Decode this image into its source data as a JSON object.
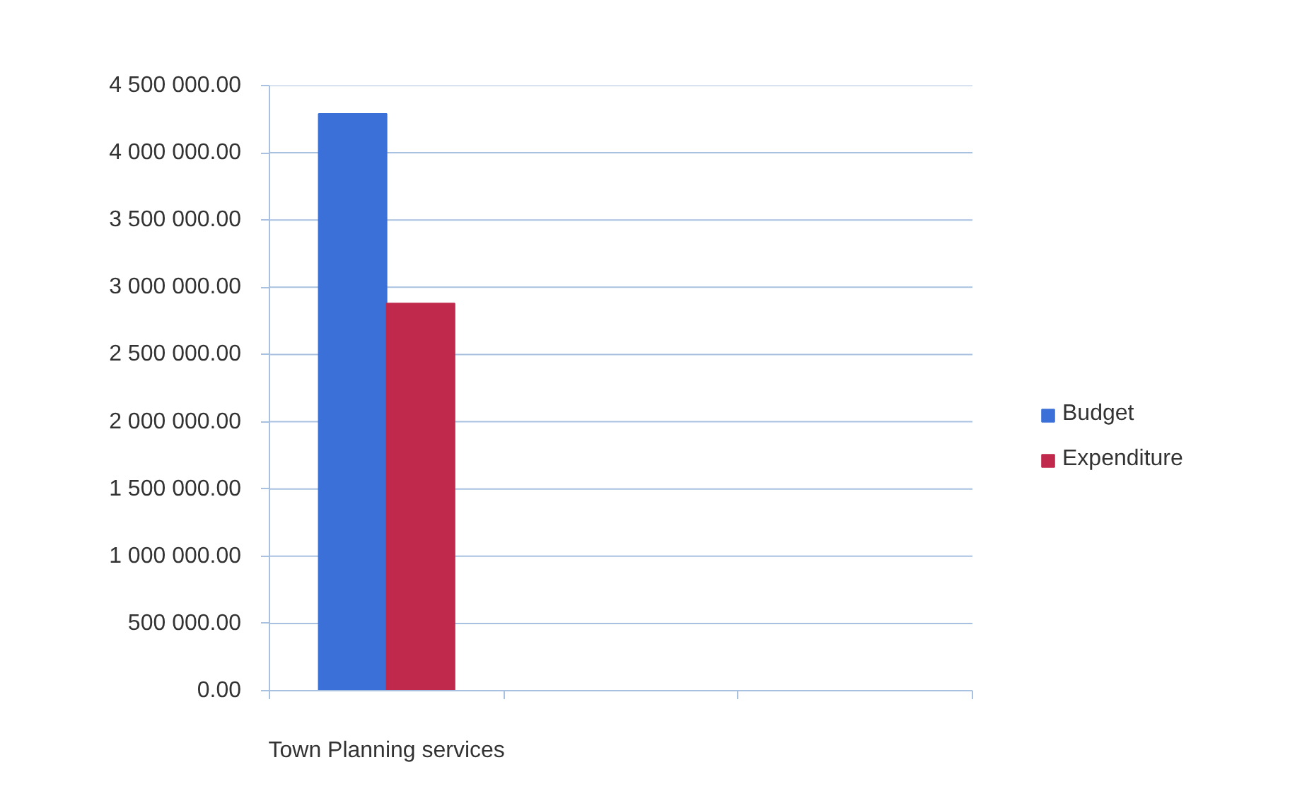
{
  "chart_data": {
    "type": "bar",
    "categories": [
      "Town Planning services",
      null,
      null
    ],
    "series": [
      {
        "name": "Budget",
        "color": "#3b70d8",
        "values": [
          4290000,
          null,
          null
        ]
      },
      {
        "name": "Expenditure",
        "color": "#c0284c",
        "values": [
          2880000,
          null,
          null
        ]
      }
    ],
    "ylim": [
      0,
      4500000
    ],
    "yticks": [
      {
        "value": 0,
        "label": "0.00"
      },
      {
        "value": 500000,
        "label": "500 000.00"
      },
      {
        "value": 1000000,
        "label": "1 000 000.00"
      },
      {
        "value": 1500000,
        "label": "1 500 000.00"
      },
      {
        "value": 2000000,
        "label": "2 000 000.00"
      },
      {
        "value": 2500000,
        "label": "2 500 000.00"
      },
      {
        "value": 3000000,
        "label": "3 000 000.00"
      },
      {
        "value": 3500000,
        "label": "3 500 000.00"
      },
      {
        "value": 4000000,
        "label": "4 000 000.00"
      },
      {
        "value": 4500000,
        "label": "4 500 000.00"
      }
    ],
    "grid": "y",
    "legend": "right"
  }
}
